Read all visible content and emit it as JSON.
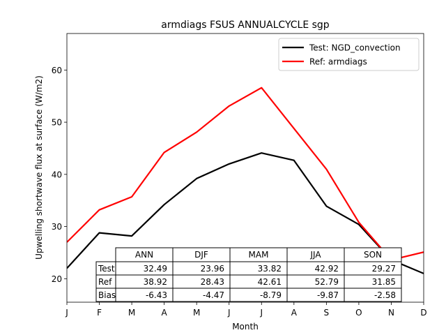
{
  "chart_data": {
    "type": "line",
    "title": "armdiags FSUS ANNUALCYCLE sgp",
    "xlabel": "Month",
    "ylabel": "Upwelling shortwave flux at surface (W/m2)",
    "categories": [
      "J",
      "F",
      "M",
      "A",
      "M",
      "J",
      "J",
      "A",
      "S",
      "O",
      "N",
      "D"
    ],
    "ylim": [
      15.5,
      67
    ],
    "yticks": [
      20,
      30,
      40,
      50,
      60
    ],
    "grid": false,
    "legend_position": "top-right",
    "series": [
      {
        "name": "Test: NGD_convection",
        "color": "#000000",
        "values": [
          22.0,
          28.8,
          28.2,
          34.2,
          39.2,
          42.0,
          44.1,
          42.7,
          33.9,
          30.4,
          23.6,
          21.0
        ]
      },
      {
        "name": "Ref: armdiags",
        "color": "#ff0000",
        "values": [
          27.0,
          33.2,
          35.7,
          44.2,
          48.1,
          53.1,
          56.6,
          48.8,
          41.0,
          30.8,
          23.6,
          25.1
        ]
      }
    ],
    "table": {
      "columns": [
        "ANN",
        "DJF",
        "MAM",
        "JJA",
        "SON"
      ],
      "rows": [
        {
          "label": "Test",
          "values": [
            "32.49",
            "23.96",
            "33.82",
            "42.92",
            "29.27"
          ]
        },
        {
          "label": "Ref",
          "values": [
            "38.92",
            "28.43",
            "42.61",
            "52.79",
            "31.85"
          ]
        },
        {
          "label": "Bias",
          "values": [
            "-6.43",
            "-4.47",
            "-8.79",
            "-9.87",
            "-2.58"
          ]
        }
      ]
    }
  }
}
